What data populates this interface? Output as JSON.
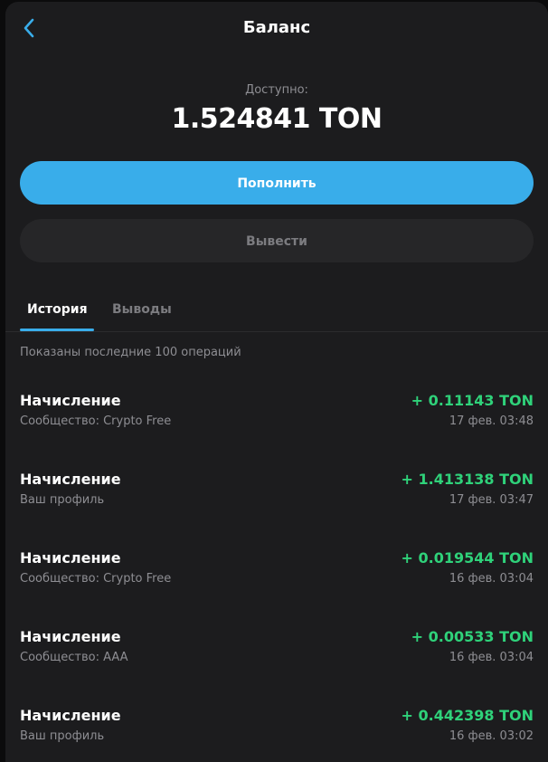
{
  "header": {
    "title": "Баланс",
    "back_icon": "chevron-left-icon"
  },
  "balance": {
    "label": "Доступно:",
    "amount": "1.524841 TON"
  },
  "actions": {
    "deposit": "Пополнить",
    "withdraw": "Вывести"
  },
  "tabs": [
    {
      "label": "История",
      "active": true
    },
    {
      "label": "Выводы",
      "active": false
    }
  ],
  "caption": "Показаны последние 100 операций",
  "transactions": [
    {
      "title": "Начисление",
      "subtitle": "Сообщество: Crypto Free",
      "amount": "+ 0.11143 TON",
      "date": "17 фев. 03:48"
    },
    {
      "title": "Начисление",
      "subtitle": "Ваш профиль",
      "amount": "+ 1.413138 TON",
      "date": "17 фев. 03:47"
    },
    {
      "title": "Начисление",
      "subtitle": "Сообщество: Crypto Free",
      "amount": "+ 0.019544 TON",
      "date": "16 фев. 03:04"
    },
    {
      "title": "Начисление",
      "subtitle": "Сообщество: AAA",
      "amount": "+ 0.00533 TON",
      "date": "16 фев. 03:04"
    },
    {
      "title": "Начисление",
      "subtitle": "Ваш профиль",
      "amount": "+ 0.442398 TON",
      "date": "16 фев. 03:02"
    }
  ],
  "colors": {
    "accent": "#39adea",
    "positive": "#2fd27a",
    "background": "#1c1c1e"
  }
}
